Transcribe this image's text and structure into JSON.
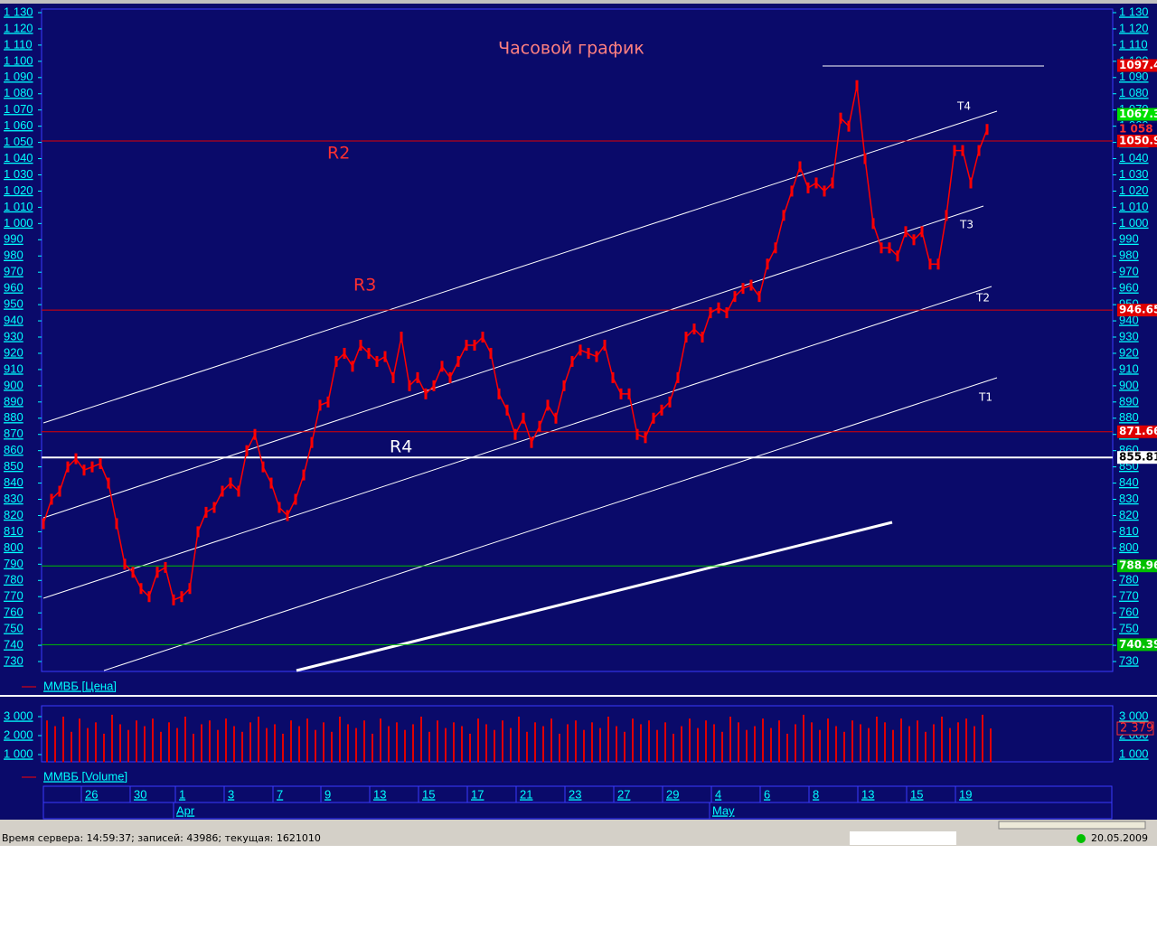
{
  "chart_data": [
    {
      "type": "line",
      "title": "Часовой график",
      "series": [
        {
          "name": "ММВБ [Цена]",
          "color": "#ff0000",
          "values": [
            815,
            830,
            835,
            850,
            855,
            848,
            850,
            852,
            840,
            815,
            790,
            785,
            775,
            770,
            785,
            788,
            768,
            770,
            775,
            810,
            822,
            825,
            835,
            840,
            835,
            860,
            870,
            850,
            840,
            825,
            820,
            830,
            845,
            865,
            888,
            890,
            915,
            920,
            912,
            925,
            920,
            915,
            918,
            905,
            930,
            900,
            905,
            895,
            900,
            912,
            905,
            915,
            925,
            925,
            930,
            920,
            895,
            885,
            870,
            880,
            865,
            875,
            888,
            880,
            900,
            915,
            922,
            920,
            918,
            925,
            905,
            895,
            895,
            870,
            868,
            880,
            885,
            890,
            905,
            930,
            935,
            930,
            945,
            948,
            945,
            955,
            960,
            962,
            955,
            975,
            985,
            1005,
            1020,
            1035,
            1022,
            1025,
            1020,
            1025,
            1065,
            1060,
            1085,
            1040,
            1000,
            985,
            985,
            980,
            995,
            990,
            995,
            975,
            975,
            1005,
            1045,
            1045,
            1025,
            1045,
            1058
          ]
        }
      ],
      "ylim": [
        724,
        1132
      ],
      "yticks": [
        {
          "value": 1130,
          "label": "1 130"
        },
        {
          "value": 1120,
          "label": "1 120"
        },
        {
          "value": 1110,
          "label": "1 110"
        },
        {
          "value": 1100,
          "label": "1 100"
        },
        {
          "value": 1090,
          "label": "1 090"
        },
        {
          "value": 1080,
          "label": "1 080"
        },
        {
          "value": 1070,
          "label": "1 070"
        },
        {
          "value": 1060,
          "label": "1 060"
        },
        {
          "value": 1050,
          "label": "1 050"
        },
        {
          "value": 1040,
          "label": "1 040"
        },
        {
          "value": 1030,
          "label": "1 030"
        },
        {
          "value": 1020,
          "label": "1 020"
        },
        {
          "value": 1010,
          "label": "1 010"
        },
        {
          "value": 1000,
          "label": "1 000"
        },
        990,
        980,
        970,
        960,
        950,
        940,
        930,
        920,
        910,
        900,
        890,
        880,
        870,
        860,
        850,
        840,
        830,
        820,
        810,
        800,
        790,
        780,
        770,
        760,
        750,
        740,
        730
      ],
      "levels": [
        {
          "value": 1097.4,
          "color": "#e00000",
          "line": false
        },
        {
          "value": 1067.3,
          "color": "#00e000",
          "line": false
        },
        {
          "value": 1058,
          "label": "1 058",
          "color": "#000066",
          "line": false
        },
        {
          "value": 1050.9,
          "color": "#e00000",
          "line": true
        },
        {
          "value": 946.65,
          "color": "#e00000",
          "line": true
        },
        {
          "value": 871.66,
          "color": "#e00000",
          "line": true
        },
        {
          "value": 855.81,
          "color": "#ffffff",
          "line": true
        },
        {
          "value": 788.96,
          "color": "#00c000",
          "line": true
        },
        {
          "value": 740.39,
          "color": "#00c000",
          "line": true
        }
      ],
      "annotations": [
        "R2",
        "R3",
        "R4",
        "T4",
        "T3",
        "T2",
        "T1"
      ],
      "x_day_labels": [
        "26",
        "30",
        "1",
        "3",
        "7",
        "9",
        "13",
        "15",
        "17",
        "21",
        "23",
        "27",
        "29",
        "4",
        "6",
        "8",
        "13",
        "15",
        "19"
      ],
      "x_month_labels": [
        "Apr",
        "May"
      ]
    },
    {
      "type": "bar",
      "series": [
        {
          "name": "ММВБ [Volume]",
          "color": "#e00000",
          "values": [
            2800,
            2500,
            3000,
            2200,
            2900,
            2400,
            2700,
            2100,
            3100,
            2600,
            2300,
            2800,
            2500,
            2900,
            2200,
            2700,
            2400,
            3000,
            2100,
            2600,
            2800,
            2300,
            2900,
            2500,
            2200,
            2700,
            3000,
            2400,
            2600,
            2100,
            2800,
            2500,
            2900,
            2300,
            2700,
            2200,
            3000,
            2600,
            2400,
            2800,
            2100,
            2900,
            2500,
            2700,
            2300,
            2600,
            3000,
            2200,
            2800,
            2400,
            2700,
            2500,
            2100,
            2900,
            2600,
            2300,
            2800,
            2400,
            3000,
            2200,
            2700,
            2500,
            2900,
            2100,
            2600,
            2800,
            2300,
            2700,
            2400,
            3000,
            2500,
            2200,
            2900,
            2600,
            2800,
            2300,
            2700,
            2100,
            2500,
            2900,
            2400,
            2800,
            2600,
            2200,
            3000,
            2700,
            2300,
            2500,
            2900,
            2400,
            2800,
            2100,
            2600,
            3100,
            2700,
            2300,
            2900,
            2500,
            2200,
            2800,
            2600,
            2400,
            3000,
            2700,
            2300,
            2900,
            2500,
            2800,
            2200,
            2600,
            3000,
            2400,
            2700,
            2900,
            2500,
            3100,
            2379
          ]
        }
      ],
      "ylim": [
        600,
        3300
      ],
      "yticks": [
        {
          "value": 3000,
          "label": "3 000"
        },
        {
          "value": 2000,
          "label": "2 000"
        },
        {
          "value": 1000,
          "label": "1 000"
        }
      ],
      "last_value": {
        "value": 2379,
        "label": "2 379"
      }
    }
  ],
  "status_bar": {
    "server": "Время сервера: 14:59:37; записей: 43986; текущая: 1621010",
    "date": "20.05.2009"
  }
}
